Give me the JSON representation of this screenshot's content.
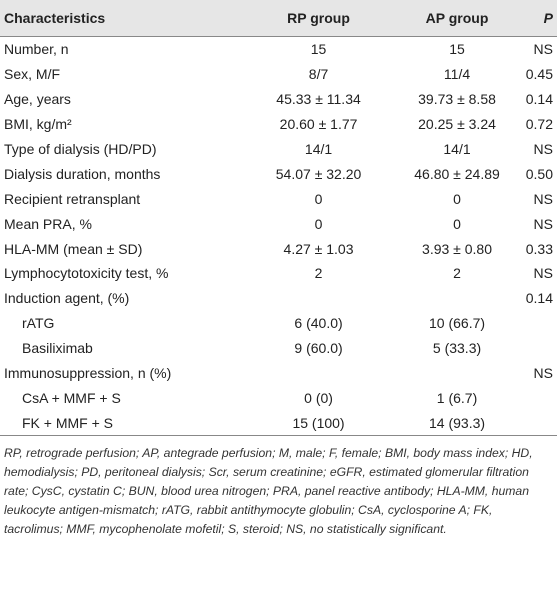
{
  "table": {
    "header": [
      "Characteristics",
      "RP group",
      "AP group",
      "P"
    ],
    "rows": [
      [
        "Number, n",
        "15",
        "15",
        "NS"
      ],
      [
        "Sex, M/F",
        "8/7",
        "11/4",
        "0.45"
      ],
      [
        "Age, years",
        "45.33 ± 11.34",
        "39.73 ± 8.58",
        "0.14"
      ],
      [
        "BMI, kg/m²",
        "20.60 ± 1.77",
        "20.25 ± 3.24",
        "0.72"
      ],
      [
        "Type of dialysis (HD/PD)",
        "14/1",
        "14/1",
        "NS"
      ],
      [
        "Dialysis duration, months",
        "54.07 ± 32.20",
        "46.80 ± 24.89",
        "0.50"
      ],
      [
        "Recipient retransplant",
        "0",
        "0",
        "NS"
      ],
      [
        "Mean PRA, %",
        "0",
        "0",
        "NS"
      ],
      [
        "HLA-MM (mean ± SD)",
        "4.27 ± 1.03",
        "3.93 ± 0.80",
        "0.33"
      ],
      [
        "Lymphocytotoxicity test, %",
        "2",
        "2",
        "NS"
      ],
      [
        "Induction agent, (%)",
        null,
        null,
        "0.14"
      ],
      [
        "rATG",
        "6 (40.0)",
        "10 (66.7)",
        null
      ],
      [
        "Basiliximab",
        "9 (60.0)",
        "5 (33.3)",
        null
      ],
      [
        "Immunosuppression, n (%)",
        null,
        null,
        "NS"
      ],
      [
        "CsA + MMF + S",
        "0 (0)",
        "1 (6.7)",
        null
      ],
      [
        "FK + MMF + S",
        "15 (100)",
        "14 (93.3)",
        null
      ]
    ],
    "footnote": "RP, retrograde perfusion; AP, antegrade perfusion; M, male; F, female; BMI, body mass index; HD, hemodialysis; PD, peritoneal dialysis; Scr, serum creatinine; eGFR, estimated glomerular filtration rate; CysC, cystatin C; BUN, blood urea nitrogen; PRA, panel reactive antibody; HLA-MM, human leukocyte antigen-mismatch; rATG, rabbit antithymocyte globulin; CsA, cyclosporine A; FK, tacrolimus; MMF, mycophenolate mofetil; S, steroid; NS, no statistically significant."
  }
}
